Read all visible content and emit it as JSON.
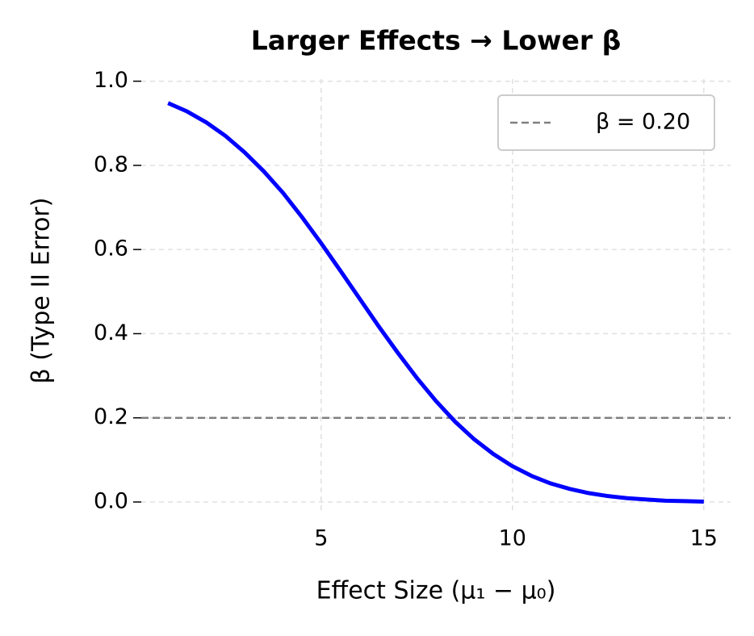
{
  "chart_data": {
    "type": "line",
    "title": "Larger Effects → Lower β",
    "x_label": "Effect Size (μ₁ − μ₀)",
    "y_label": "β (Type II Error)",
    "x": [
      1,
      1.5,
      2,
      2.5,
      3,
      3.5,
      4,
      4.5,
      5,
      5.5,
      6,
      6.5,
      7,
      7.5,
      8,
      8.5,
      9,
      9.5,
      10,
      10.5,
      11,
      11.5,
      12,
      12.5,
      13,
      13.5,
      14,
      14.5,
      15
    ],
    "series": [
      {
        "color": "#0000ff",
        "values": [
          0.948,
          0.928,
          0.902,
          0.87,
          0.831,
          0.786,
          0.735,
          0.677,
          0.615,
          0.55,
          0.484,
          0.418,
          0.355,
          0.295,
          0.24,
          0.191,
          0.149,
          0.114,
          0.085,
          0.062,
          0.044,
          0.031,
          0.021,
          0.014,
          0.009,
          0.006,
          0.003,
          0.002,
          0.001
        ]
      }
    ],
    "reference_lines": [
      {
        "name": "β = 0.20",
        "value": 0.2,
        "color": "#808080"
      }
    ],
    "xlim": [
      0.3,
      15.7
    ],
    "ylim": [
      -0.025,
      1.005
    ],
    "xticks": [
      5,
      10,
      15
    ],
    "yticks": [
      {
        "value": 0,
        "label": "0.0"
      },
      0.2,
      0.4,
      0.6,
      0.8,
      {
        "value": 1,
        "label": "1.0"
      }
    ],
    "grid": true,
    "legend": "upper right"
  }
}
